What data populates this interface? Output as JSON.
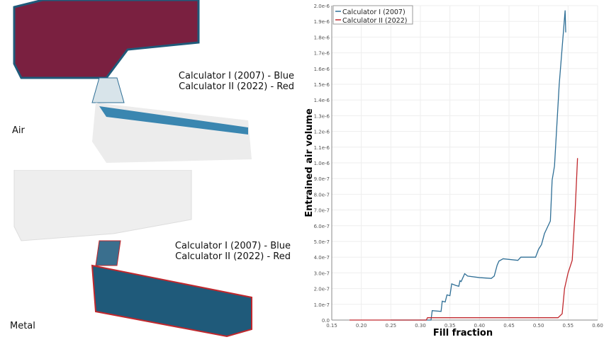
{
  "panels": [
    {
      "name": "Air",
      "caption": [
        "Calculator I  (2007) - Blue",
        "Calculator II (2022) - Red"
      ]
    },
    {
      "name": "Metal",
      "caption": [
        "Calculator I  (2007) - Blue",
        "Calculator II (2022) - Red"
      ]
    }
  ],
  "colors": {
    "blue": "#2f6f96",
    "red": "#c0282d",
    "grey": "#e6e6e6"
  },
  "chart_data": {
    "type": "line",
    "xlabel": "Fill fraction",
    "ylabel": "Entrained air volume",
    "xlim": [
      0.15,
      0.6
    ],
    "ylim": [
      0,
      2e-06
    ],
    "xticks": [
      "0.15",
      "0.20",
      "0.25",
      "0.30",
      "0.35",
      "0.40",
      "0.45",
      "0.50",
      "0.55",
      "0.60"
    ],
    "yticks": [
      "0.0",
      "1.0e-7",
      "2.0e-7",
      "3.0e-7",
      "4.0e-7",
      "5.0e-7",
      "6.0e-7",
      "7.0e-7",
      "8.0e-7",
      "9.0e-7",
      "1.0e-6",
      "1.1e-6",
      "1.2e-6",
      "1.3e-6",
      "1.4e-6",
      "1.5e-6",
      "1.6e-6",
      "1.7e-6",
      "1.8e-6",
      "1.9e-6",
      "2.0e-6"
    ],
    "grid": true,
    "legend": "top-left",
    "series": [
      {
        "name": "Calculator I (2007)",
        "color": "#2f6f96",
        "x": [
          0.25,
          0.318,
          0.32,
          0.335,
          0.337,
          0.342,
          0.345,
          0.35,
          0.353,
          0.36,
          0.365,
          0.367,
          0.369,
          0.372,
          0.375,
          0.38,
          0.4,
          0.42,
          0.425,
          0.43,
          0.433,
          0.44,
          0.465,
          0.47,
          0.495,
          0.5,
          0.505,
          0.51,
          0.52,
          0.523,
          0.527,
          0.535,
          0.545,
          0.546
        ],
        "y": [
          0,
          0,
          6e-08,
          5.5e-08,
          1.2e-07,
          1.15e-07,
          1.6e-07,
          1.55e-07,
          2.3e-07,
          2.2e-07,
          2.15e-07,
          2.5e-07,
          2.45e-07,
          2.7e-07,
          2.95e-07,
          2.8e-07,
          2.7e-07,
          2.65e-07,
          2.8e-07,
          3.5e-07,
          3.75e-07,
          3.9e-07,
          3.8e-07,
          4e-07,
          4e-07,
          4.5e-07,
          4.8e-07,
          5.5e-07,
          6.3e-07,
          8.9e-07,
          9.8e-07,
          1.5e-06,
          1.97e-06,
          1.83e-06
        ]
      },
      {
        "name": "Calculator II (2022)",
        "color": "#c0282d",
        "x": [
          0.18,
          0.31,
          0.312,
          0.533,
          0.54,
          0.544,
          0.55,
          0.557,
          0.562,
          0.566
        ],
        "y": [
          0,
          0,
          1.5e-08,
          1.5e-08,
          4e-08,
          2e-07,
          3e-07,
          3.8e-07,
          7e-07,
          1.03e-06
        ]
      }
    ]
  }
}
